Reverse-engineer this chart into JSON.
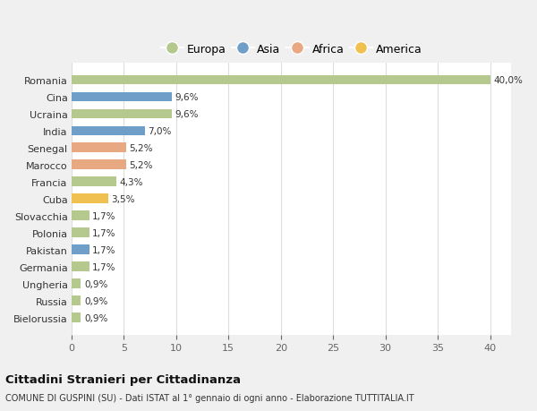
{
  "categories": [
    "Romania",
    "Cina",
    "Ucraina",
    "India",
    "Senegal",
    "Marocco",
    "Francia",
    "Cuba",
    "Slovacchia",
    "Polonia",
    "Pakistan",
    "Germania",
    "Ungheria",
    "Russia",
    "Bielorussia"
  ],
  "values": [
    40.0,
    9.6,
    9.6,
    7.0,
    5.2,
    5.2,
    4.3,
    3.5,
    1.7,
    1.7,
    1.7,
    1.7,
    0.9,
    0.9,
    0.9
  ],
  "labels": [
    "40,0%",
    "9,6%",
    "9,6%",
    "7,0%",
    "5,2%",
    "5,2%",
    "4,3%",
    "3,5%",
    "1,7%",
    "1,7%",
    "1,7%",
    "1,7%",
    "0,9%",
    "0,9%",
    "0,9%"
  ],
  "bar_colors": [
    "#b5c98e",
    "#6f9ec9",
    "#b5c98e",
    "#6f9ec9",
    "#e8a882",
    "#e8a882",
    "#b5c98e",
    "#f0c050",
    "#b5c98e",
    "#b5c98e",
    "#6f9ec9",
    "#b5c98e",
    "#b5c98e",
    "#b5c98e",
    "#b5c98e"
  ],
  "continent_labels": [
    "Europa",
    "Asia",
    "Africa",
    "America"
  ],
  "continent_colors": [
    "#b5c98e",
    "#6f9ec9",
    "#e8a882",
    "#f0c050"
  ],
  "xlim": [
    0,
    42
  ],
  "xticks": [
    0,
    5,
    10,
    15,
    20,
    25,
    30,
    35,
    40
  ],
  "title": "Cittadini Stranieri per Cittadinanza",
  "subtitle": "COMUNE DI GUSPINI (SU) - Dati ISTAT al 1° gennaio di ogni anno - Elaborazione TUTTITALIA.IT",
  "background_color": "#f0f0f0",
  "plot_background": "#ffffff",
  "grid_color": "#dddddd"
}
